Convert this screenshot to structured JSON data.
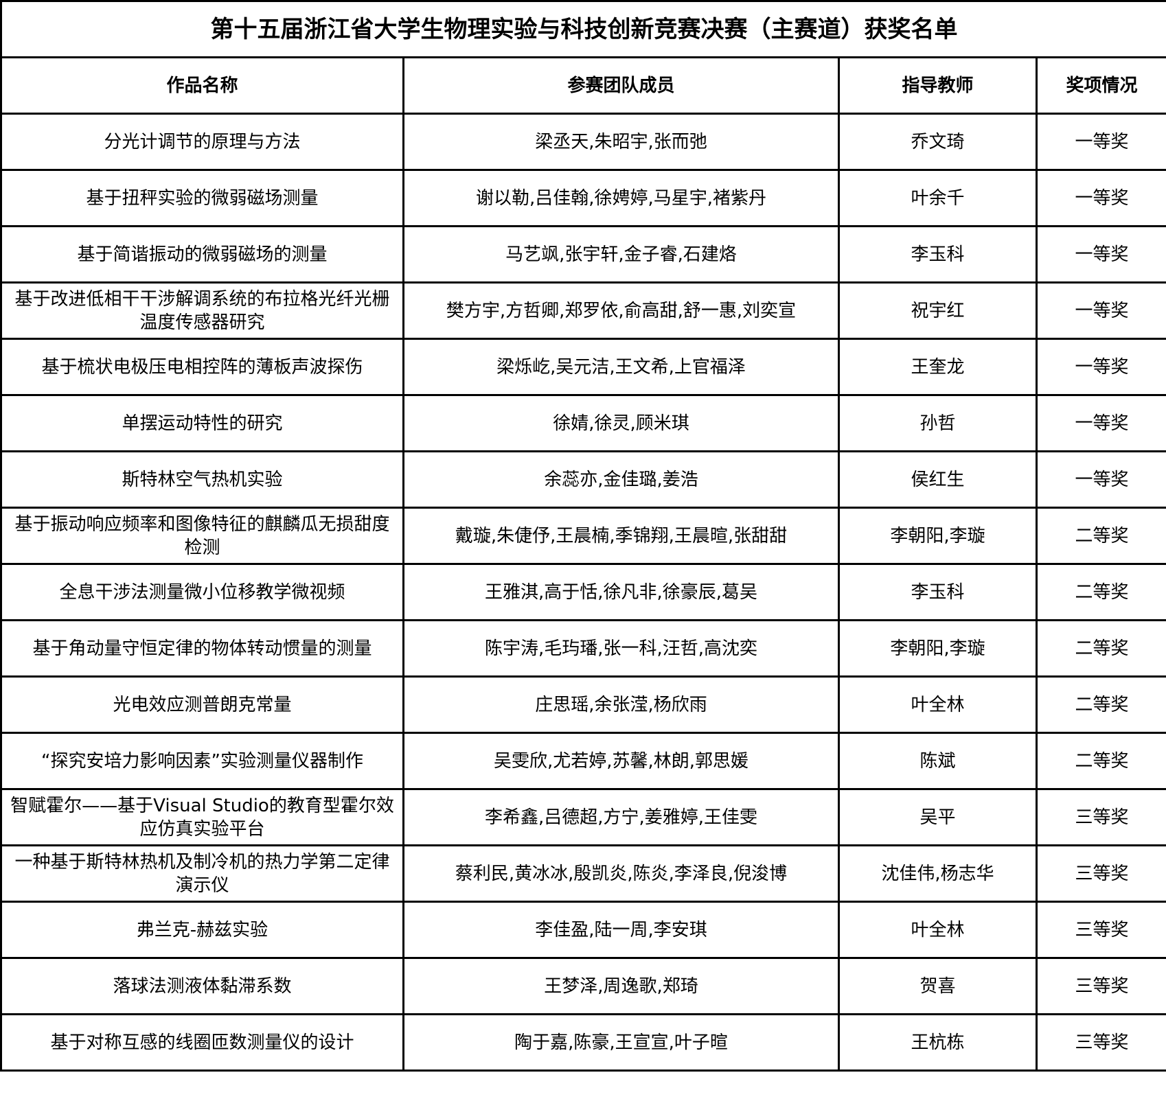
{
  "title": "第十五届浙江省大学生物理实验与科技创新竞赛决赛（主赛道）获奖名单",
  "headers": [
    "作品名称",
    "参赛团队成员",
    "指导教师",
    "奖项情况"
  ],
  "rows": [
    [
      "分光计调节的原理与方法",
      "梁丞天,朱昭宇,张而弛",
      "乔文琦",
      "一等奖"
    ],
    [
      "基于扭秤实验的微弱磁场测量",
      "谢以勒,吕佳翰,徐娉婷,马星宇,褚紫丹",
      "叶余千",
      "一等奖"
    ],
    [
      "基于简谐振动的微弱磁场的测量",
      "马艺飒,张宇轩,金子睿,石建烙",
      "李玉科",
      "一等奖"
    ],
    [
      "基于改进低相干干涉解调系统的布拉格光纤光栅温度传感器研究",
      "樊方宇,方哲卿,郑罗依,俞高甜,舒一惠,刘奕宣",
      "祝宇红",
      "一等奖"
    ],
    [
      "基于梳状电极压电相控阵的薄板声波探伤",
      "梁烁屹,吴元洁,王文希,上官福泽",
      "王奎龙",
      "一等奖"
    ],
    [
      "单摆运动特性的研究",
      "徐婧,徐灵,顾米琪",
      "孙哲",
      "一等奖"
    ],
    [
      "斯特林空气热机实验",
      "余蕊亦,金佳璐,姜浩",
      "侯红生",
      "一等奖"
    ],
    [
      "基于振动响应频率和图像特征的麒麟瓜无损甜度检测",
      "戴璇,朱倢伃,王晨楠,季锦翔,王晨暄,张甜甜",
      "李朝阳,李璇",
      "二等奖"
    ],
    [
      "全息干涉法测量微小位移教学微视频",
      "王雅淇,高于恬,徐凡非,徐豪辰,葛吴",
      "李玉科",
      "二等奖"
    ],
    [
      "基于角动量守恒定律的物体转动惯量的测量",
      "陈宇涛,毛玙璠,张一科,汪哲,高沈奕",
      "李朝阳,李璇",
      "二等奖"
    ],
    [
      "光电效应测普朗克常量",
      "庄思瑶,余张滢,杨欣雨",
      "叶全林",
      "二等奖"
    ],
    [
      "“探究安培力影响因素”实验测量仪器制作",
      "吴雯欣,尤若婷,苏馨,林朗,郭思媛",
      "陈斌",
      "二等奖"
    ],
    [
      "智赋霍尔——基于Visual Studio的教育型霍尔效应仿真实验平台",
      "李希鑫,吕德超,方宁,姜雅婷,王佳雯",
      "吴平",
      "三等奖"
    ],
    [
      "一种基于斯特林热机及制冷机的热力学第二定律演示仪",
      "蔡利民,黄冰冰,殷凯炎,陈炎,李泽良,倪浚博",
      "沈佳伟,杨志华",
      "三等奖"
    ],
    [
      "弗兰克-赫兹实验",
      "李佳盈,陆一周,李安琪",
      "叶全林",
      "三等奖"
    ],
    [
      "落球法测液体黏滞系数",
      "王梦泽,周逸歌,郑琦",
      "贺喜",
      "三等奖"
    ],
    [
      "基于对称互感的线圈匝数测量仪的设计",
      "陶于嘉,陈豪,王宣宣,叶子暄",
      "王杭栋",
      "三等奖"
    ]
  ]
}
